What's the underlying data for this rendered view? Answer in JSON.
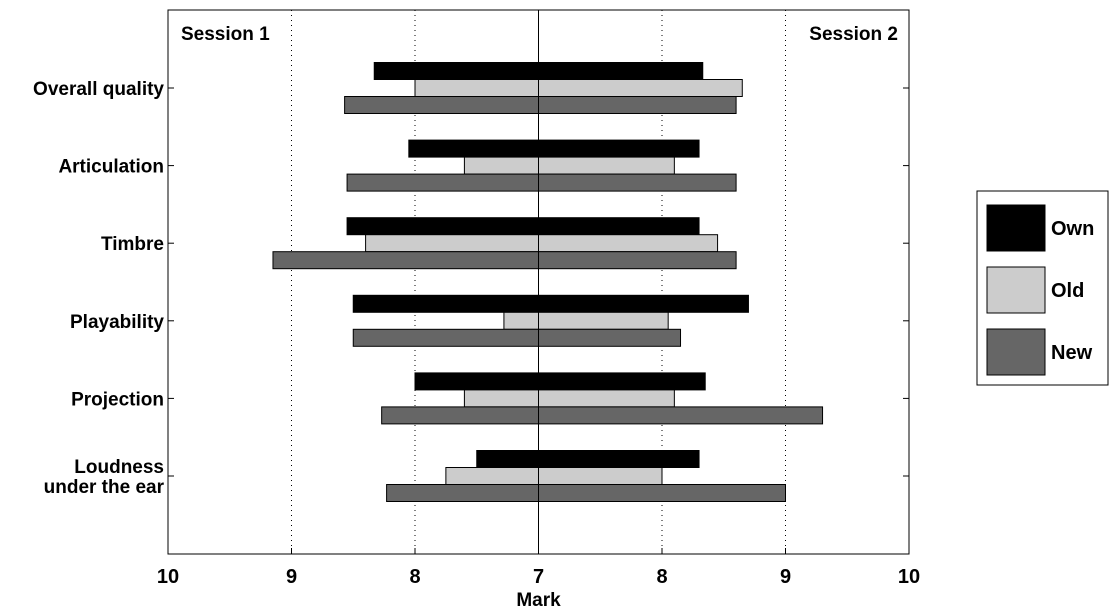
{
  "chart_data": {
    "type": "bar",
    "orientation": "horizontal",
    "layout": "diverging",
    "xlabel": "Mark",
    "left_label": "Session 1",
    "right_label": "Session 2",
    "xlim": [
      10,
      7,
      10
    ],
    "xticks": [
      "10",
      "9",
      "8",
      "7",
      "8",
      "9",
      "10"
    ],
    "grid": "vertical dotted",
    "legend_position": "right",
    "categories": [
      {
        "lines": [
          "Overall quality"
        ]
      },
      {
        "lines": [
          "Articulation"
        ]
      },
      {
        "lines": [
          "Timbre"
        ]
      },
      {
        "lines": [
          "Playability"
        ]
      },
      {
        "lines": [
          "Projection"
        ]
      },
      {
        "lines": [
          "Loudness",
          "under the ear"
        ]
      }
    ],
    "series": [
      {
        "name": "Own",
        "color": "#000000",
        "session1": [
          8.33,
          8.05,
          8.55,
          8.5,
          8.0,
          7.5
        ],
        "session2": [
          8.33,
          8.3,
          8.3,
          8.7,
          8.35,
          8.3
        ]
      },
      {
        "name": "Old",
        "color": "#cccccc",
        "session1": [
          8.0,
          7.6,
          8.4,
          7.28,
          7.6,
          7.75
        ],
        "session2": [
          8.65,
          8.1,
          8.45,
          8.05,
          8.1,
          8.0
        ]
      },
      {
        "name": "New",
        "color": "#666666",
        "session1": [
          8.57,
          8.55,
          9.15,
          8.5,
          8.27,
          8.23
        ],
        "session2": [
          8.6,
          8.6,
          8.6,
          8.15,
          9.3,
          9.0
        ]
      }
    ]
  }
}
